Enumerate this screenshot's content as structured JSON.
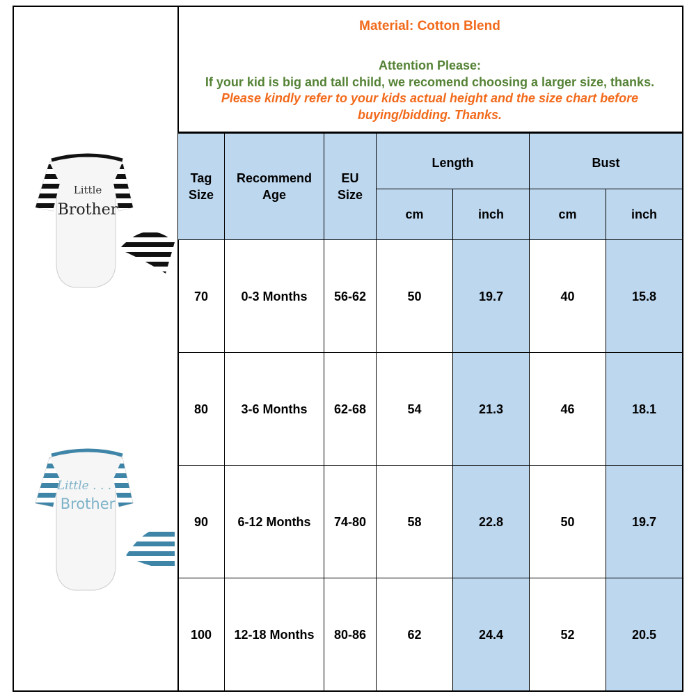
{
  "notice": {
    "material": "Material: Cotton Blend",
    "attention_title": "Attention Please:",
    "attention_body": "If your kid is big and tall child, we recomend choosing a larger  size,  thanks.",
    "refer_line1": "Please kindly refer to your kids actual height and the size chart before",
    "refer_line2": "buying/bidding. Thanks."
  },
  "colors": {
    "orange": "#f26a1b",
    "green": "#548235",
    "header_bg": "#bdd7ee"
  },
  "products": [
    {
      "icon": "black-striped-romper-with-hat",
      "print_line1": "Little",
      "print_line2": "Brother",
      "stripe_color": "#111111"
    },
    {
      "icon": "blue-striped-romper-with-hat",
      "print_line1": "Little . . .",
      "print_line2": "Brother",
      "stripe_color": "#3f85a8"
    }
  ],
  "table": {
    "headers": {
      "tag_size": "Tag Size",
      "recommend_age": "Recommend Age",
      "eu_size": "EU Size",
      "length": "Length",
      "bust": "Bust",
      "cm": "cm",
      "inch": "inch"
    },
    "rows": [
      {
        "tag": "70",
        "age": "0-3 Months",
        "eu": "56-62",
        "len_cm": "50",
        "len_in": "19.7",
        "bust_cm": "40",
        "bust_in": "15.8"
      },
      {
        "tag": "80",
        "age": "3-6 Months",
        "eu": "62-68",
        "len_cm": "54",
        "len_in": "21.3",
        "bust_cm": "46",
        "bust_in": "18.1"
      },
      {
        "tag": "90",
        "age": "6-12 Months",
        "eu": "74-80",
        "len_cm": "58",
        "len_in": "22.8",
        "bust_cm": "50",
        "bust_in": "19.7"
      },
      {
        "tag": "100",
        "age": "12-18 Months",
        "eu": "80-86",
        "len_cm": "62",
        "len_in": "24.4",
        "bust_cm": "52",
        "bust_in": "20.5"
      }
    ]
  }
}
